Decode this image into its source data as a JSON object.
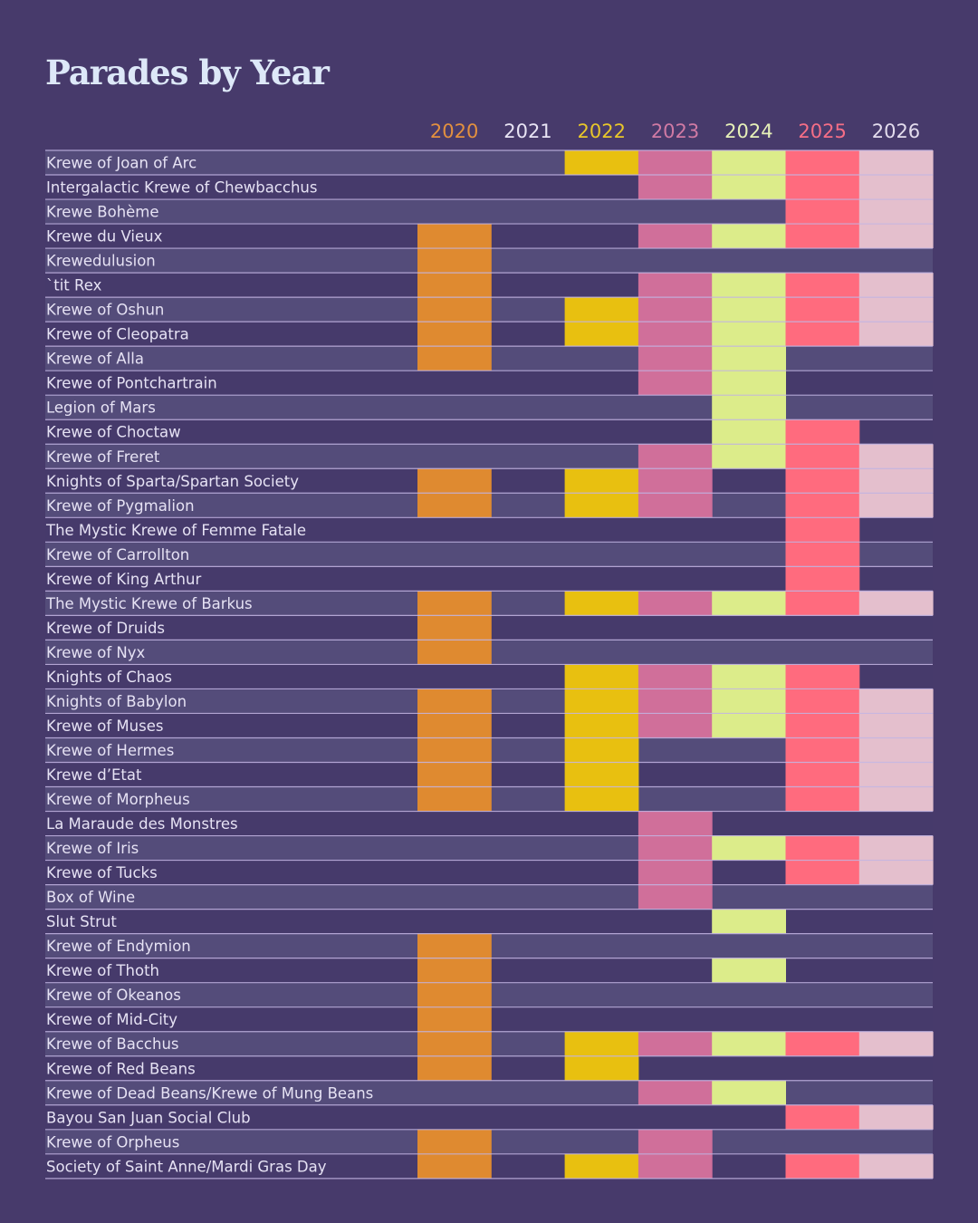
{
  "chart_data": {
    "type": "heatmap",
    "title": "Parades by Year",
    "xlabel": "",
    "ylabel": "",
    "legend": "none",
    "years": [
      "2020",
      "2021",
      "2022",
      "2023",
      "2024",
      "2025",
      "2026"
    ],
    "year_colors": [
      "#df8a30",
      "#e6e2f4",
      "#e8c010",
      "#d06f9a",
      "#dcec8a",
      "#ff6b7e",
      "#e4bfcd"
    ],
    "header_colors": [
      "#e2903f",
      "#e8e4f4",
      "#e8c62a",
      "#d07aa4",
      "#e6f0b8",
      "#f56e86",
      "#e3dced"
    ],
    "band_colors": [
      "#544c7a",
      "#463a6b"
    ],
    "rows": [
      {
        "name": "Krewe of Joan of Arc",
        "values": [
          0,
          0,
          1,
          1,
          1,
          1,
          1
        ]
      },
      {
        "name": "Intergalactic Krewe of Chewbacchus",
        "values": [
          0,
          0,
          0,
          1,
          1,
          1,
          1
        ]
      },
      {
        "name": "Krewe Bohème",
        "values": [
          0,
          0,
          0,
          0,
          0,
          1,
          1
        ]
      },
      {
        "name": "Krewe du Vieux",
        "values": [
          1,
          0,
          0,
          1,
          1,
          1,
          1
        ]
      },
      {
        "name": "Krewedulusion",
        "values": [
          1,
          0,
          0,
          0,
          0,
          0,
          0
        ]
      },
      {
        "name": "`tit Rex",
        "values": [
          1,
          0,
          0,
          1,
          1,
          1,
          1
        ]
      },
      {
        "name": "Krewe of Oshun",
        "values": [
          1,
          0,
          1,
          1,
          1,
          1,
          1
        ]
      },
      {
        "name": "Krewe of Cleopatra",
        "values": [
          1,
          0,
          1,
          1,
          1,
          1,
          1
        ]
      },
      {
        "name": "Krewe of Alla",
        "values": [
          1,
          0,
          0,
          1,
          1,
          0,
          0
        ]
      },
      {
        "name": "Krewe of Pontchartrain",
        "values": [
          0,
          0,
          0,
          1,
          1,
          0,
          0
        ]
      },
      {
        "name": "Legion of Mars",
        "values": [
          0,
          0,
          0,
          0,
          1,
          0,
          0
        ]
      },
      {
        "name": "Krewe of Choctaw",
        "values": [
          0,
          0,
          0,
          0,
          1,
          1,
          0
        ]
      },
      {
        "name": "Krewe of Freret",
        "values": [
          0,
          0,
          0,
          1,
          1,
          1,
          1
        ]
      },
      {
        "name": "Knights of Sparta/Spartan Society",
        "values": [
          1,
          0,
          1,
          1,
          0,
          1,
          1
        ]
      },
      {
        "name": "Krewe of Pygmalion",
        "values": [
          1,
          0,
          1,
          1,
          0,
          1,
          1
        ]
      },
      {
        "name": "The Mystic Krewe of Femme Fatale",
        "values": [
          0,
          0,
          0,
          0,
          0,
          1,
          0
        ]
      },
      {
        "name": "Krewe of Carrollton",
        "values": [
          0,
          0,
          0,
          0,
          0,
          1,
          0
        ]
      },
      {
        "name": "Krewe of King Arthur",
        "values": [
          0,
          0,
          0,
          0,
          0,
          1,
          0
        ]
      },
      {
        "name": "The Mystic Krewe of Barkus",
        "values": [
          1,
          0,
          1,
          1,
          1,
          1,
          1
        ]
      },
      {
        "name": "Krewe of Druids",
        "values": [
          1,
          0,
          0,
          0,
          0,
          0,
          0
        ]
      },
      {
        "name": "Krewe of Nyx",
        "values": [
          1,
          0,
          0,
          0,
          0,
          0,
          0
        ]
      },
      {
        "name": "Knights of Chaos",
        "values": [
          0,
          0,
          1,
          1,
          1,
          1,
          0
        ]
      },
      {
        "name": "Knights of Babylon",
        "values": [
          1,
          0,
          1,
          1,
          1,
          1,
          1
        ]
      },
      {
        "name": "Krewe of Muses",
        "values": [
          1,
          0,
          1,
          1,
          1,
          1,
          1
        ]
      },
      {
        "name": "Krewe of Hermes",
        "values": [
          1,
          0,
          1,
          0,
          0,
          1,
          1
        ]
      },
      {
        "name": "Krewe d’Etat",
        "values": [
          1,
          0,
          1,
          0,
          0,
          1,
          1
        ]
      },
      {
        "name": "Krewe of Morpheus",
        "values": [
          1,
          0,
          1,
          0,
          0,
          1,
          1
        ]
      },
      {
        "name": "La Maraude des Monstres",
        "values": [
          0,
          0,
          0,
          1,
          0,
          0,
          0
        ]
      },
      {
        "name": "Krewe of Iris",
        "values": [
          0,
          0,
          0,
          1,
          1,
          1,
          1
        ]
      },
      {
        "name": "Krewe of Tucks",
        "values": [
          0,
          0,
          0,
          1,
          0,
          1,
          1
        ]
      },
      {
        "name": "Box of Wine",
        "values": [
          0,
          0,
          0,
          1,
          0,
          0,
          0
        ]
      },
      {
        "name": "Slut Strut",
        "values": [
          0,
          0,
          0,
          0,
          1,
          0,
          0
        ]
      },
      {
        "name": "Krewe of Endymion",
        "values": [
          1,
          0,
          0,
          0,
          0,
          0,
          0
        ]
      },
      {
        "name": "Krewe of Thoth",
        "values": [
          1,
          0,
          0,
          0,
          1,
          0,
          0
        ]
      },
      {
        "name": "Krewe of Okeanos",
        "values": [
          1,
          0,
          0,
          0,
          0,
          0,
          0
        ]
      },
      {
        "name": "Krewe of Mid-City",
        "values": [
          1,
          0,
          0,
          0,
          0,
          0,
          0
        ]
      },
      {
        "name": "Krewe of Bacchus",
        "values": [
          1,
          0,
          1,
          1,
          1,
          1,
          1
        ]
      },
      {
        "name": "Krewe of Red Beans",
        "values": [
          1,
          0,
          1,
          0,
          0,
          0,
          0
        ]
      },
      {
        "name": "Krewe of Dead Beans/Krewe of Mung Beans",
        "values": [
          0,
          0,
          0,
          1,
          1,
          0,
          0
        ]
      },
      {
        "name": "Bayou San Juan Social Club",
        "values": [
          0,
          0,
          0,
          0,
          0,
          1,
          1
        ]
      },
      {
        "name": "Krewe of Orpheus",
        "values": [
          1,
          0,
          0,
          1,
          0,
          0,
          0
        ]
      },
      {
        "name": "Society of Saint Anne/Mardi Gras Day",
        "values": [
          1,
          0,
          1,
          1,
          0,
          1,
          1
        ]
      }
    ]
  }
}
